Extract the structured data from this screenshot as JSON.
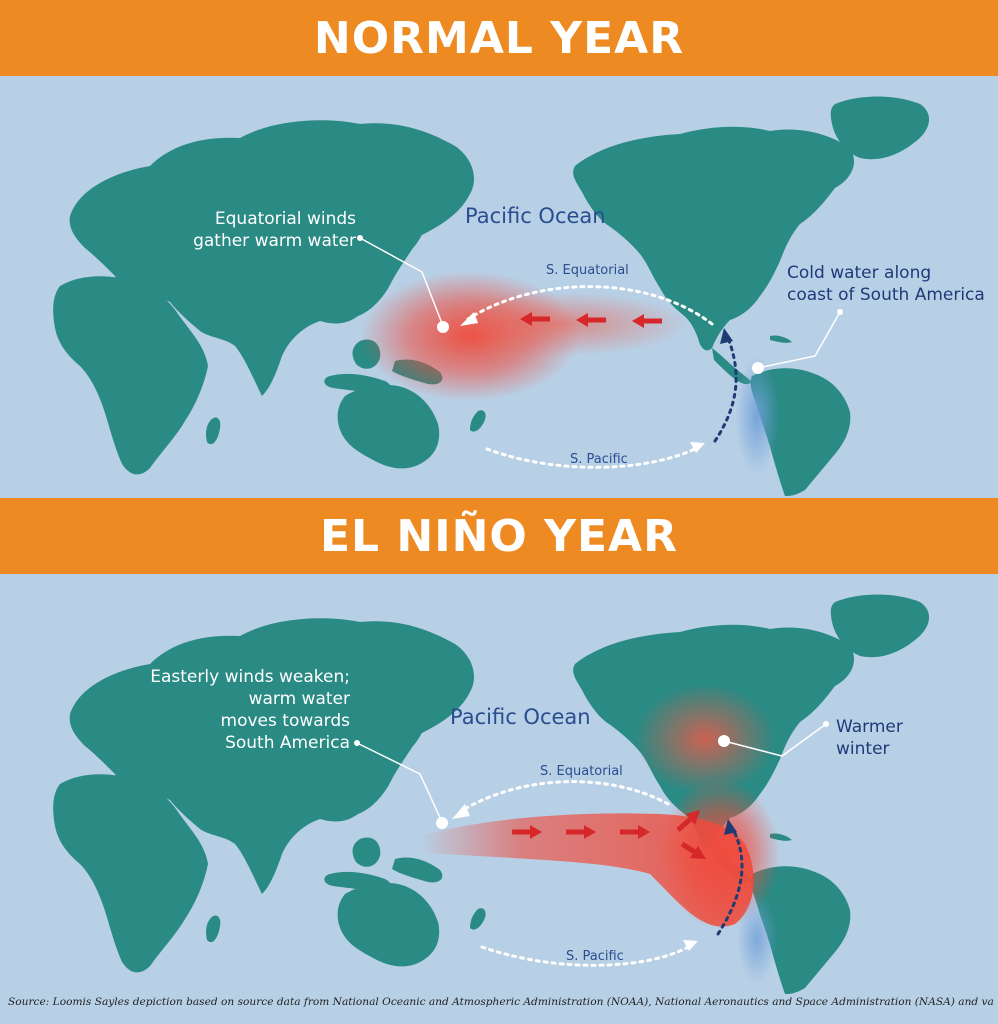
{
  "colors": {
    "banner": "#ee8a22",
    "ocean": "#b8d0e6",
    "land": "#2a8a84",
    "warm": "#ef4b3c",
    "cold": "#6f9fd8",
    "arrow": "#d62828",
    "current_arrow_light": "#ffffff",
    "current_arrow_dark": "#1e3b73"
  },
  "normal": {
    "title": "NORMAL YEAR",
    "ocean_label": "Pacific Ocean",
    "callout_winds": [
      "Equatorial winds",
      "gather warm water"
    ],
    "callout_cold": [
      "Cold water along",
      "coast of South America"
    ],
    "current_equatorial": "S. Equatorial",
    "current_pacific": "S. Pacific"
  },
  "elnino": {
    "title": "EL NIÑO YEAR",
    "ocean_label": "Pacific Ocean",
    "callout_winds": [
      "Easterly winds weaken;",
      "warm water",
      "moves towards",
      "South America"
    ],
    "callout_warmer": [
      "Warmer",
      "winter"
    ],
    "current_equatorial": "S. Equatorial",
    "current_pacific": "S. Pacific"
  },
  "source": "Source: Loomis Sayles depiction based on source data from National Oceanic and Atmospheric Administration (NOAA), National Aeronautics and Space Administration (NASA) and various media reports."
}
